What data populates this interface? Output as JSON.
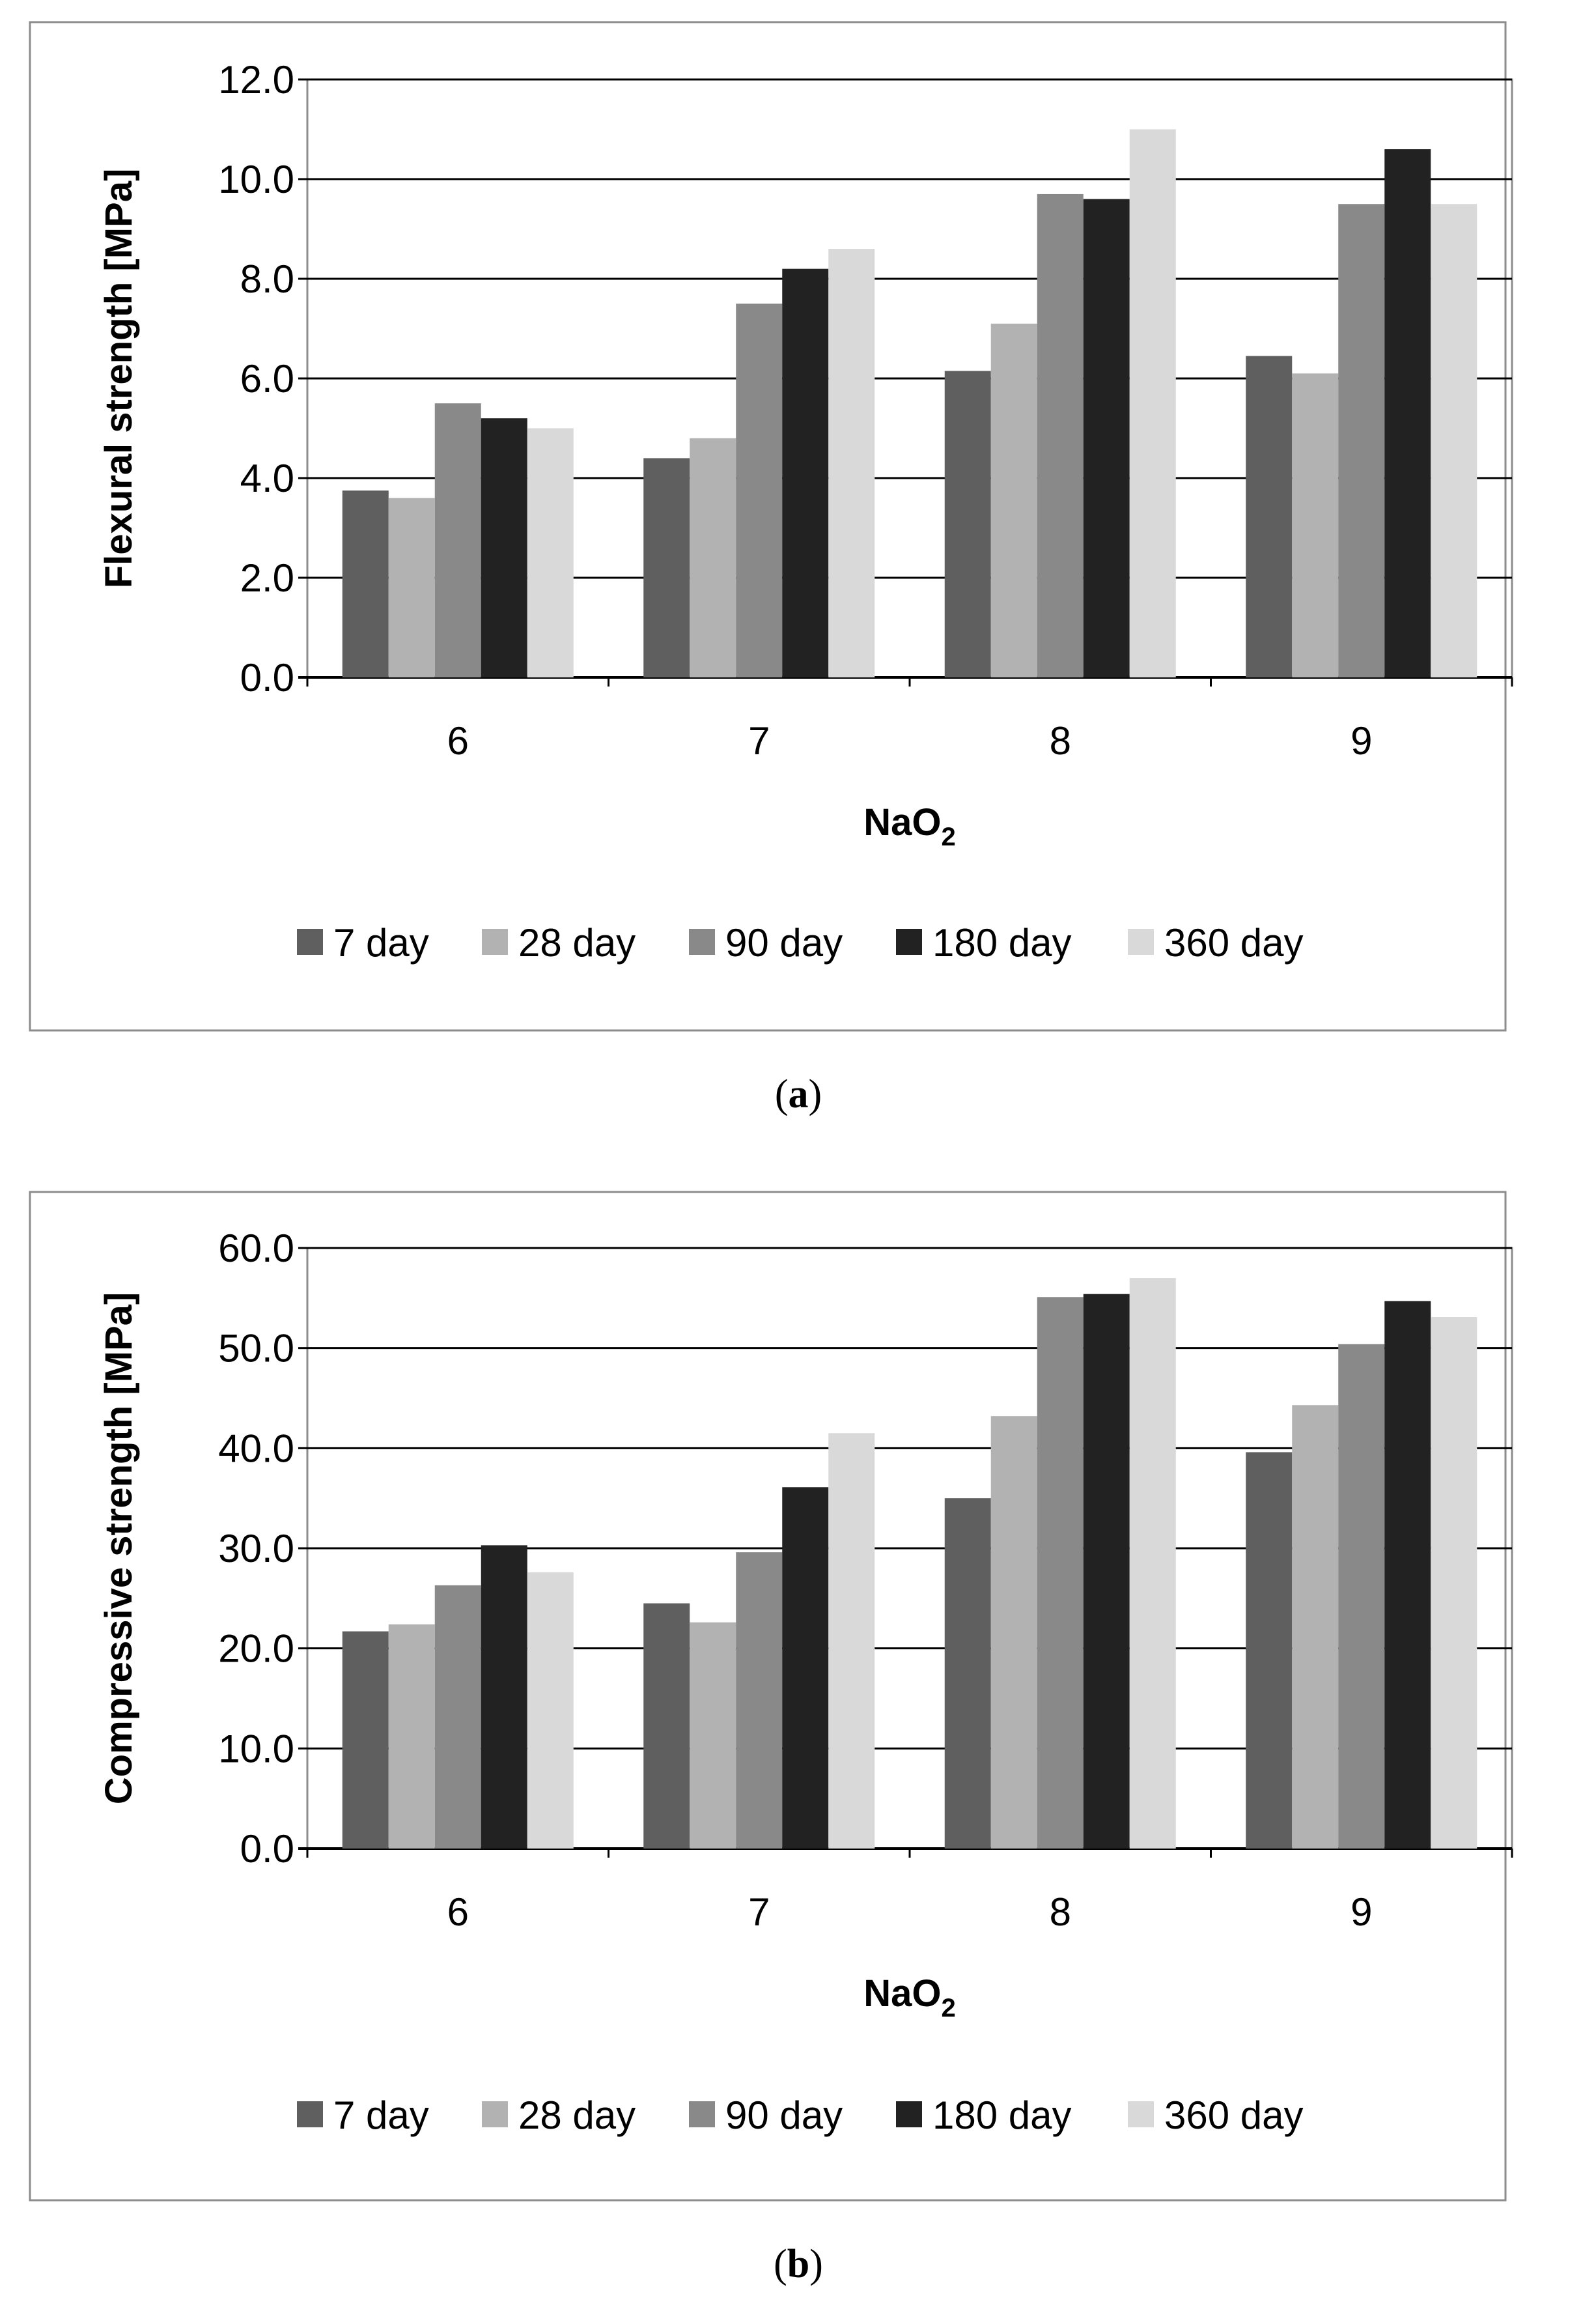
{
  "chart_data": [
    {
      "type": "bar",
      "panel_label": "a",
      "ylabel": "Flexural strength [MPa]",
      "xlabel_base": "NaO",
      "xlabel_sub": "2",
      "categories": [
        "6",
        "7",
        "8",
        "9"
      ],
      "ylim": [
        0,
        12
      ],
      "ytick_step": 2,
      "yticks": [
        "0.0",
        "2.0",
        "4.0",
        "6.0",
        "8.0",
        "10.0",
        "12.0"
      ],
      "grid": true,
      "legend_position": "bottom",
      "series": [
        {
          "name": "7 day",
          "color": "#5f5f5f",
          "values": [
            3.75,
            4.4,
            6.15,
            6.45
          ]
        },
        {
          "name": "28 day",
          "color": "#b2b2b2",
          "values": [
            3.6,
            4.8,
            7.1,
            6.1
          ]
        },
        {
          "name": "90 day",
          "color": "#898989",
          "values": [
            5.5,
            7.5,
            9.7,
            9.5
          ]
        },
        {
          "name": "180 day",
          "color": "#222222",
          "values": [
            5.2,
            8.2,
            9.6,
            10.6
          ]
        },
        {
          "name": "360 day",
          "color": "#d9d9d9",
          "values": [
            5.0,
            8.6,
            11.0,
            9.5
          ]
        }
      ]
    },
    {
      "type": "bar",
      "panel_label": "b",
      "ylabel": "Compressive strength [MPa]",
      "xlabel_base": "NaO",
      "xlabel_sub": "2",
      "categories": [
        "6",
        "7",
        "8",
        "9"
      ],
      "ylim": [
        0,
        60
      ],
      "ytick_step": 10,
      "yticks": [
        "0.0",
        "10.0",
        "20.0",
        "30.0",
        "40.0",
        "50.0",
        "60.0"
      ],
      "grid": true,
      "legend_position": "bottom",
      "series": [
        {
          "name": "7 day",
          "color": "#5f5f5f",
          "values": [
            21.7,
            24.5,
            35.0,
            39.6
          ]
        },
        {
          "name": "28 day",
          "color": "#b2b2b2",
          "values": [
            22.4,
            22.6,
            43.2,
            44.3
          ]
        },
        {
          "name": "90 day",
          "color": "#898989",
          "values": [
            26.3,
            29.6,
            55.1,
            50.4
          ]
        },
        {
          "name": "180 day",
          "color": "#222222",
          "values": [
            30.3,
            36.1,
            55.4,
            54.7
          ]
        },
        {
          "name": "360 day",
          "color": "#d9d9d9",
          "values": [
            27.6,
            41.5,
            57.0,
            53.1
          ]
        }
      ]
    }
  ]
}
